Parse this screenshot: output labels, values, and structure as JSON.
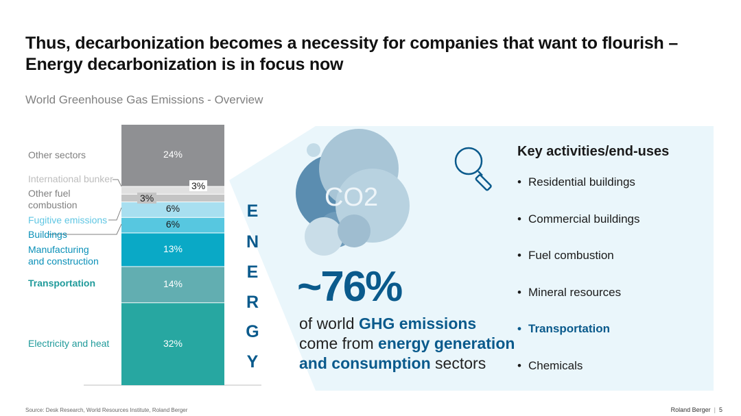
{
  "title_line1": "Thus, decarbonization becomes a necessity for companies that want to flourish –",
  "title_line2": "Energy decarbonization is in focus now",
  "subtitle": "World Greenhouse Gas Emissions - Overview",
  "chart_data": {
    "type": "bar",
    "stacked": true,
    "unit": "%",
    "categories": [
      "Electricity and heat",
      "Transportation",
      "Manufacturing and construction",
      "Buildings",
      "Fugitive emissions",
      "Other fuel combustion",
      "International bunker",
      "Other sectors"
    ],
    "values": [
      32,
      14,
      13,
      6,
      6,
      3,
      3,
      24
    ],
    "value_labels": [
      "32%",
      "14%",
      "13%",
      "6%",
      "6%",
      "3%",
      "3%",
      "24%"
    ],
    "colors": [
      "#27a7a1",
      "#62aeb1",
      "#0aa9c6",
      "#57c7e0",
      "#a8dff0",
      "#c4c4c4",
      "#e0e0e0",
      "#8f9093"
    ]
  },
  "labels": {
    "other_sectors": "Other sectors",
    "international_bunker": "International bunker",
    "other_fuel_1": "Other fuel",
    "other_fuel_2": "combustion",
    "fugitive": "Fugitive emissions",
    "buildings": "Buildings",
    "manufacturing_1": "Manufacturing",
    "manufacturing_2": "and construction",
    "transportation": "Transportation",
    "electricity": "Electricity and heat"
  },
  "label_colors": {
    "grey": "#7f7f7f",
    "light_grey": "#bdbdbd",
    "light_blue": "#5fc6e3",
    "teal_blue": "#0a90b8",
    "teal": "#1f9a9a"
  },
  "energy_letters": [
    "E",
    "N",
    "E",
    "R",
    "G",
    "Y"
  ],
  "co2_text": "CO2",
  "big_pct": "~76%",
  "ghg_1": "of world ",
  "ghg_2": "GHG emissions",
  "ghg_3": "come from ",
  "ghg_4": "energy generation",
  "ghg_5": "and consumption",
  "ghg_6": " sectors",
  "key_title": "Key activities/end-uses",
  "activities": [
    "Residential buildings",
    "Commercial buildings",
    "Fuel combustion",
    "Mineral resources",
    "Transportation",
    "Chemicals"
  ],
  "highlight_activity_index": 4,
  "magnifier_icon": "magnifier-icon",
  "source": "Source: Desk Research, World Resources Institute, Roland Berger",
  "brand": "Roland Berger",
  "page": "5",
  "accent_color": "#0a5a8c",
  "panel_color": "#eaf6fb"
}
